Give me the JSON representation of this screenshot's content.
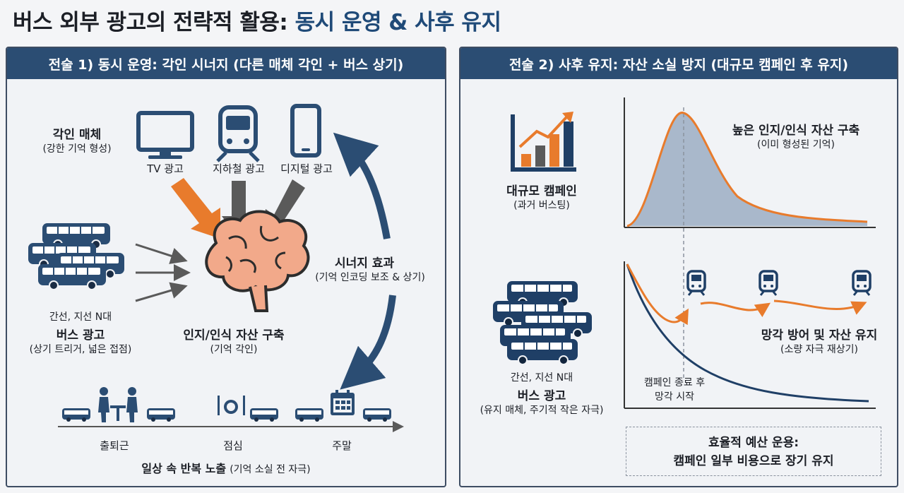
{
  "title": {
    "main": "버스 외부 광고의 전략적 활용:",
    "accent": "동시 운영 & 사후 유지"
  },
  "left": {
    "header": "전술 1) 동시 운영: 각인 시너지 (다른 매체 각인 + 버스 상기)",
    "media_title": "각인 매체",
    "media_sub": "(강한 기억 형성)",
    "media": [
      {
        "label": "TV 광고",
        "icon": "tv-icon"
      },
      {
        "label": "지하철 광고",
        "icon": "subway-icon"
      },
      {
        "label": "디지털 광고",
        "icon": "smartphone-icon"
      }
    ],
    "bus_pre": "간선, 지선 N대",
    "bus_title": "버스 광고",
    "bus_sub": "(상기 트리거, 넓은 접점)",
    "brain_title": "인지/인식 자산 구축",
    "brain_sub": "(기억 각인)",
    "synergy_title": "시너지 효과",
    "synergy_sub": "(기억 인코딩 보조 & 상기)",
    "timeline": [
      "출퇴근",
      "점심",
      "주말"
    ],
    "bottom_bold": "일상 속 반복 노출",
    "bottom_sub": "(기억 소실 전 자극)",
    "colors": {
      "orange": "#e87b2c",
      "gray": "#5a5a5a",
      "navy": "#2b4d73"
    }
  },
  "right": {
    "header": "전술 2) 사후 유지: 자산 소실 방지 (대규모 캠페인 후 유지)",
    "campaign_title": "대규모 캠페인",
    "campaign_sub": "(과거 버스팅)",
    "peak_title": "높은 인지/인식 자산 구축",
    "peak_sub": "(이미 형성된 기억)",
    "bus_pre": "간선, 지선 N대",
    "bus_title": "버스 광고",
    "bus_sub": "(유지 매체, 주기적 작은 자극)",
    "end_line1": "캠페인 종료 후",
    "end_line2": "망각 시작",
    "maintain_title": "망각 방어 및 자산 유지",
    "maintain_sub": "(소량 자극 재상기)",
    "budget_line1": "효율적 예산 운용:",
    "budget_line2": "캠페인 일부 비용으로 장기 유지",
    "colors": {
      "orange": "#e87b2c",
      "fill": "#a9b8cb",
      "navy": "#1f3f66"
    }
  }
}
